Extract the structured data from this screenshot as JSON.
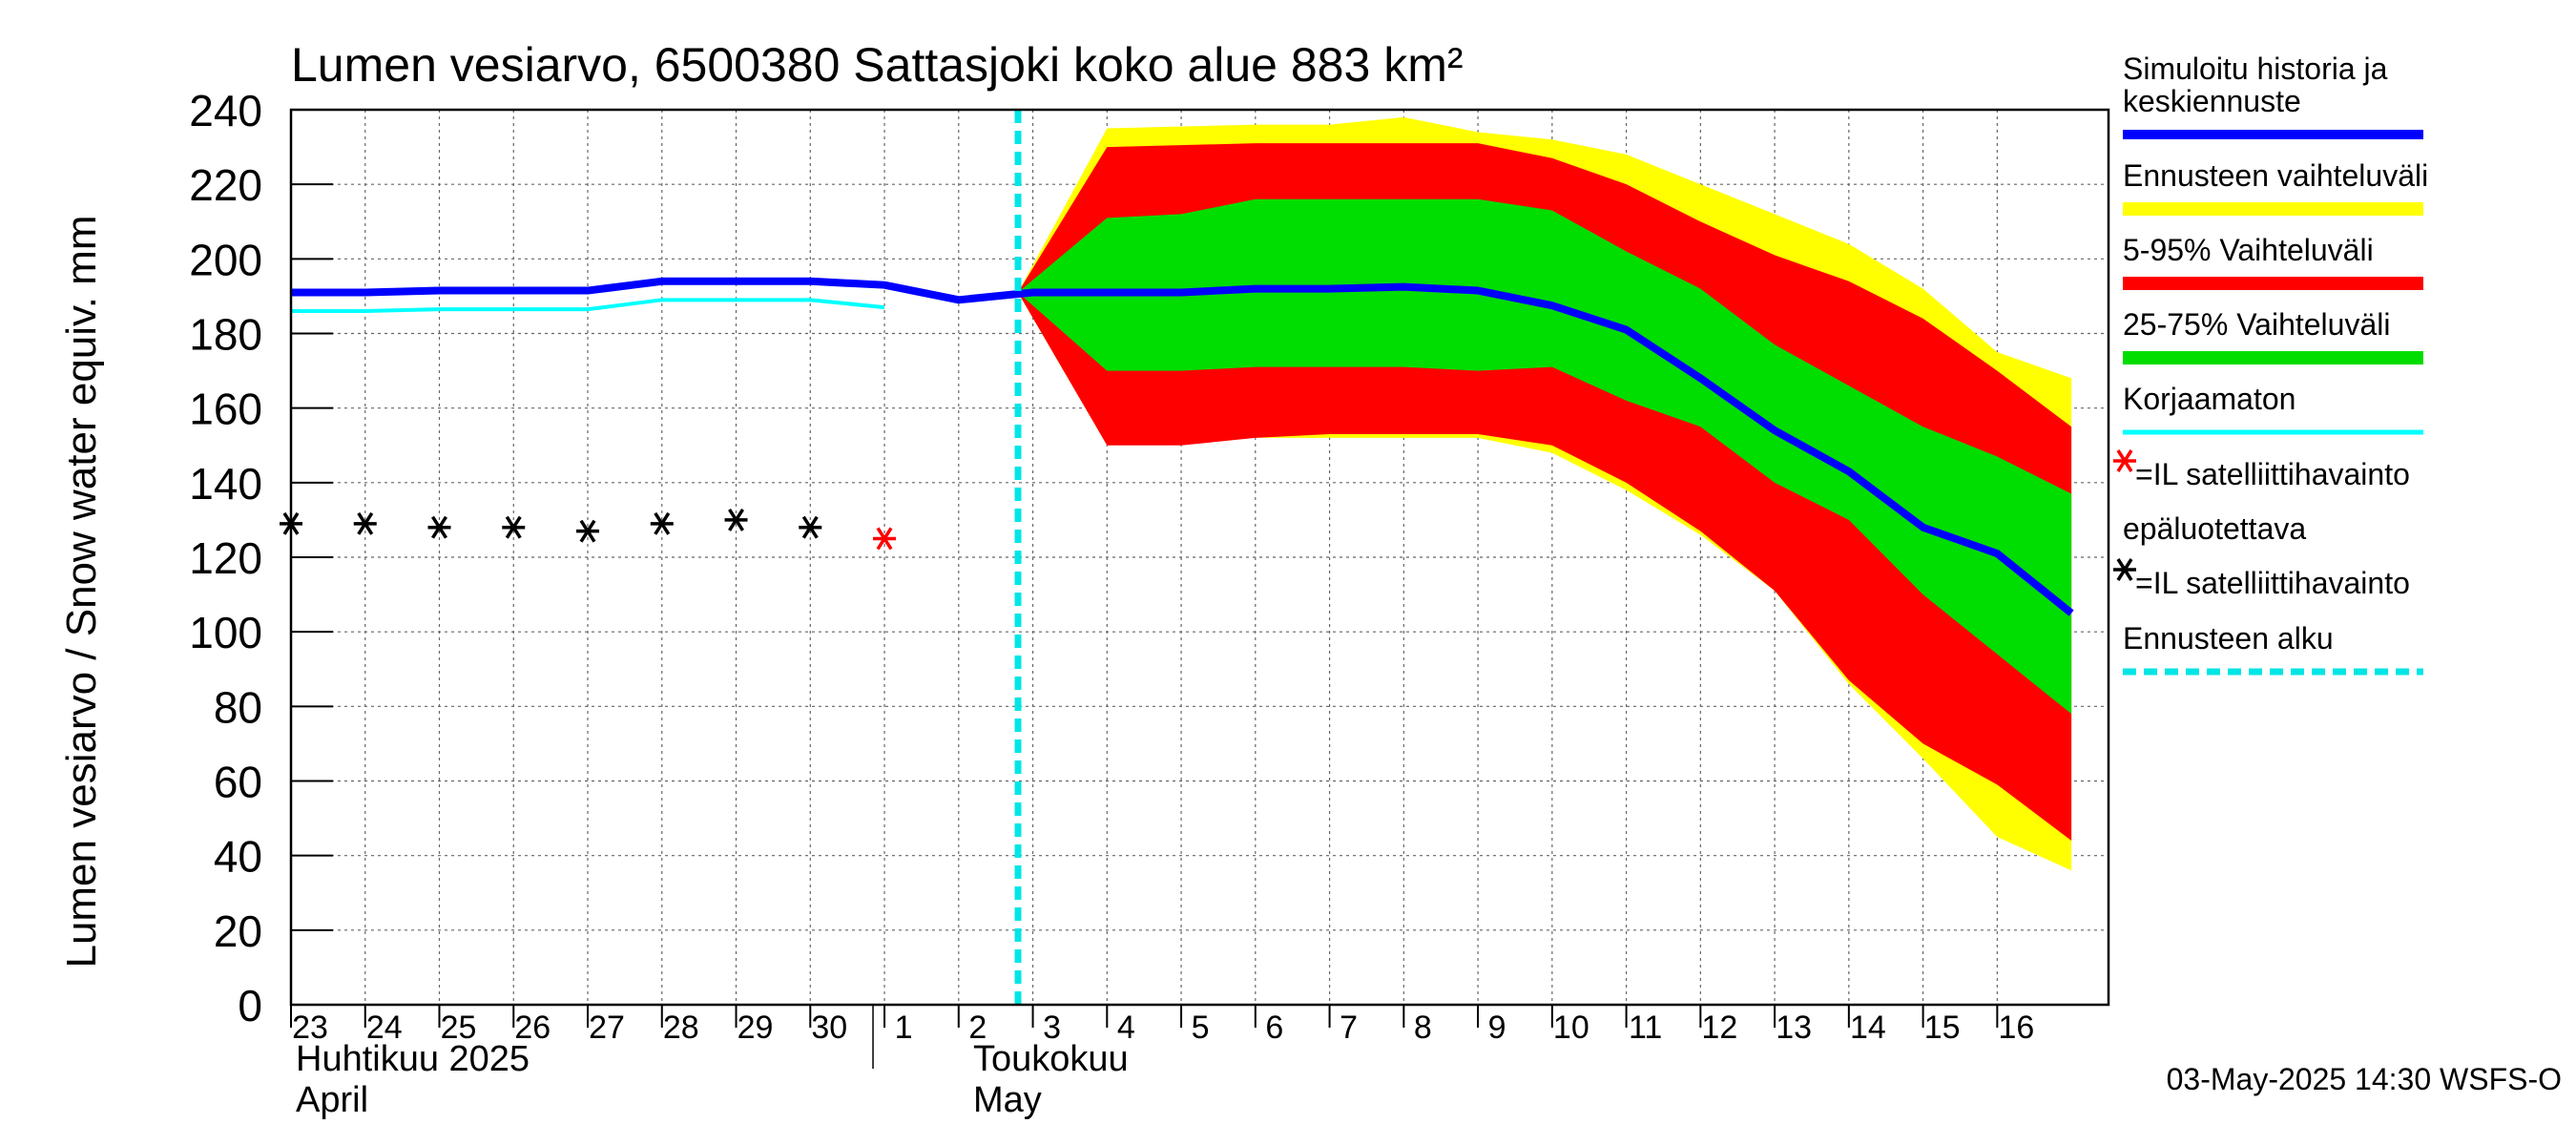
{
  "chart_data": {
    "type": "area",
    "title": "Lumen vesiarvo, 6500380 Sattasjoki koko alue 883 km²",
    "ylabel": "Lumen vesiarvo / Snow water equiv.    mm",
    "ylim": [
      0,
      240
    ],
    "yticks": [
      "0",
      "20",
      "40",
      "60",
      "80",
      "100",
      "120",
      "140",
      "160",
      "180",
      "200",
      "220",
      "240"
    ],
    "xlim": [
      0,
      24.5
    ],
    "days": [
      {
        "label": "23",
        "x": 0
      },
      {
        "label": "24",
        "x": 1
      },
      {
        "label": "25",
        "x": 2
      },
      {
        "label": "26",
        "x": 3
      },
      {
        "label": "27",
        "x": 4
      },
      {
        "label": "28",
        "x": 5
      },
      {
        "label": "29",
        "x": 6
      },
      {
        "label": "30",
        "x": 7
      },
      {
        "label": "1",
        "x": 8
      },
      {
        "label": "2",
        "x": 9
      },
      {
        "label": "3",
        "x": 10
      },
      {
        "label": "4",
        "x": 11
      },
      {
        "label": "5",
        "x": 12
      },
      {
        "label": "6",
        "x": 13
      },
      {
        "label": "7",
        "x": 14
      },
      {
        "label": "8",
        "x": 15
      },
      {
        "label": "9",
        "x": 16
      },
      {
        "label": "10",
        "x": 17
      },
      {
        "label": "11",
        "x": 18
      },
      {
        "label": "12",
        "x": 19
      },
      {
        "label": "13",
        "x": 20
      },
      {
        "label": "14",
        "x": 21
      },
      {
        "label": "15",
        "x": 22
      },
      {
        "label": "16",
        "x": 23
      }
    ],
    "month_labels": {
      "april_fi": "Huhtikuu  2025",
      "april_en": "April",
      "may_fi": "Toukokuu",
      "may_en": "May"
    },
    "series": [
      {
        "name": "Ennusteen vaihteluväli",
        "color": "#ffff00",
        "upper": [
          [
            9.8,
            191
          ],
          [
            11,
            235
          ],
          [
            13,
            236
          ],
          [
            14,
            236
          ],
          [
            15,
            238
          ],
          [
            16,
            234
          ],
          [
            17,
            232
          ],
          [
            18,
            228
          ],
          [
            19,
            220
          ],
          [
            20,
            212
          ],
          [
            21,
            204
          ],
          [
            22,
            192
          ],
          [
            23,
            175
          ],
          [
            24,
            168
          ]
        ],
        "lower": [
          [
            9.8,
            191
          ],
          [
            11,
            150
          ],
          [
            13,
            152
          ],
          [
            14,
            152
          ],
          [
            15,
            152
          ],
          [
            16,
            152
          ],
          [
            17,
            148
          ],
          [
            18,
            138
          ],
          [
            19,
            126
          ],
          [
            20,
            111
          ],
          [
            21,
            86
          ],
          [
            22,
            66
          ],
          [
            23,
            45
          ],
          [
            24,
            36
          ]
        ]
      },
      {
        "name": "5-95% Vaihteluväli",
        "color": "#ff0000",
        "upper": [
          [
            9.8,
            191
          ],
          [
            11,
            230
          ],
          [
            13,
            231
          ],
          [
            14,
            231
          ],
          [
            15,
            231
          ],
          [
            16,
            231
          ],
          [
            17,
            227
          ],
          [
            18,
            220
          ],
          [
            19,
            210
          ],
          [
            20,
            201
          ],
          [
            21,
            194
          ],
          [
            22,
            184
          ],
          [
            23,
            170
          ],
          [
            24,
            155
          ]
        ],
        "lower": [
          [
            9.8,
            191
          ],
          [
            11,
            150
          ],
          [
            12,
            150
          ],
          [
            13,
            152
          ],
          [
            14,
            153
          ],
          [
            15,
            153
          ],
          [
            16,
            153
          ],
          [
            17,
            150
          ],
          [
            18,
            140
          ],
          [
            19,
            127
          ],
          [
            20,
            111
          ],
          [
            21,
            87
          ],
          [
            22,
            70
          ],
          [
            23,
            59
          ],
          [
            24,
            44
          ]
        ]
      },
      {
        "name": "25-75% Vaihteluväli",
        "color": "#00dd00",
        "upper": [
          [
            9.8,
            191
          ],
          [
            11,
            211
          ],
          [
            12,
            212
          ],
          [
            13,
            216
          ],
          [
            14,
            216
          ],
          [
            15,
            216
          ],
          [
            16,
            216
          ],
          [
            17,
            213
          ],
          [
            18,
            202
          ],
          [
            19,
            192
          ],
          [
            20,
            177
          ],
          [
            21,
            166
          ],
          [
            22,
            155
          ],
          [
            23,
            147
          ],
          [
            24,
            137
          ]
        ],
        "lower": [
          [
            9.8,
            191
          ],
          [
            11,
            170
          ],
          [
            12,
            170
          ],
          [
            13,
            171
          ],
          [
            14,
            171
          ],
          [
            15,
            171
          ],
          [
            16,
            170
          ],
          [
            17,
            171
          ],
          [
            18,
            162
          ],
          [
            19,
            155
          ],
          [
            20,
            140
          ],
          [
            21,
            130
          ],
          [
            22,
            110
          ],
          [
            23,
            94
          ],
          [
            24,
            78
          ]
        ]
      },
      {
        "name": "Simuloitu historia ja keskiennuste",
        "color": "#0000ff",
        "points": [
          [
            0,
            191
          ],
          [
            1,
            191
          ],
          [
            2,
            191.5
          ],
          [
            3,
            191.5
          ],
          [
            4,
            191.5
          ],
          [
            5,
            194
          ],
          [
            6,
            194
          ],
          [
            7,
            194
          ],
          [
            8,
            193
          ],
          [
            9,
            189
          ],
          [
            10,
            191
          ],
          [
            11,
            191
          ],
          [
            12,
            191
          ],
          [
            13,
            192
          ],
          [
            14,
            192
          ],
          [
            15,
            192.5
          ],
          [
            16,
            191.5
          ],
          [
            17,
            187.5
          ],
          [
            18,
            181
          ],
          [
            19,
            168
          ],
          [
            20,
            154
          ],
          [
            21,
            143
          ],
          [
            22,
            128
          ],
          [
            23,
            121
          ],
          [
            24,
            105
          ]
        ]
      },
      {
        "name": "Korjaamaton",
        "color": "#00ffff",
        "points": [
          [
            0,
            186
          ],
          [
            1,
            186
          ],
          [
            2,
            186.5
          ],
          [
            3,
            186.5
          ],
          [
            4,
            186.5
          ],
          [
            5,
            189
          ],
          [
            6,
            189
          ],
          [
            7,
            189
          ],
          [
            8,
            187
          ]
        ]
      }
    ],
    "observations": [
      {
        "x": 0,
        "y": 129,
        "reliable": true
      },
      {
        "x": 1,
        "y": 129,
        "reliable": true
      },
      {
        "x": 2,
        "y": 128,
        "reliable": true
      },
      {
        "x": 3,
        "y": 128,
        "reliable": true
      },
      {
        "x": 4,
        "y": 127,
        "reliable": true
      },
      {
        "x": 5,
        "y": 129,
        "reliable": true
      },
      {
        "x": 6,
        "y": 130,
        "reliable": true
      },
      {
        "x": 7,
        "y": 128,
        "reliable": true
      },
      {
        "x": 8,
        "y": 125,
        "reliable": false
      }
    ],
    "forecast_start_x": 9.8,
    "legend": {
      "sim_line1": "Simuloitu historia ja",
      "sim_line2": "keskiennuste",
      "range": "Ennusteen vaihteluväli",
      "p5_95": "5-95% Vaihteluväli",
      "p25_75": "25-75% Vaihteluväli",
      "uncorrected": "Korjaamaton",
      "obs_unreliable_line1": "=IL satelliittihavainto",
      "obs_unreliable_line2": "epäluotettava",
      "obs_reliable": "=IL satelliittihavainto",
      "forecast_start": "Ennusteen alku"
    },
    "footer": "03-May-2025 14:30 WSFS-O"
  }
}
